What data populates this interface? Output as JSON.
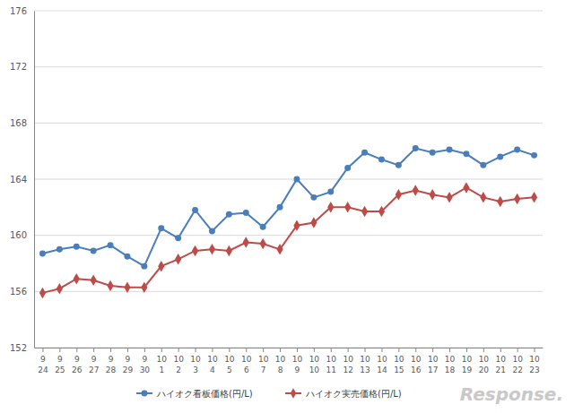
{
  "chart_data": {
    "type": "line",
    "categories": [
      "9\n24",
      "9\n25",
      "9\n26",
      "9\n27",
      "9\n28",
      "9\n29",
      "9\n30",
      "10\n1",
      "10\n2",
      "10\n3",
      "10\n4",
      "10\n5",
      "10\n6",
      "10\n7",
      "10\n8",
      "10\n9",
      "10\n10",
      "10\n11",
      "10\n12",
      "10\n13",
      "10\n14",
      "10\n15",
      "10\n16",
      "10\n17",
      "10\n18",
      "10\n19",
      "10\n20",
      "10\n21",
      "10\n22",
      "10\n23"
    ],
    "series": [
      {
        "name": "ハイオク看板価格(円/L)",
        "color": "#4a7ebb",
        "marker": "circle",
        "values": [
          158.7,
          159.0,
          159.2,
          158.9,
          159.3,
          158.5,
          157.8,
          160.5,
          159.8,
          161.8,
          160.3,
          161.5,
          161.6,
          160.6,
          162.0,
          164.0,
          162.7,
          163.1,
          164.8,
          165.9,
          165.4,
          165.0,
          166.2,
          165.9,
          166.1,
          165.8,
          165.0,
          165.6,
          166.1,
          165.7
        ]
      },
      {
        "name": "ハイオク実売価格(円/L)",
        "color": "#be4b48",
        "marker": "diamond",
        "values": [
          155.9,
          156.2,
          156.9,
          156.8,
          156.4,
          156.3,
          156.3,
          157.8,
          158.3,
          158.9,
          159.0,
          158.9,
          159.5,
          159.4,
          159.0,
          160.7,
          160.9,
          162.0,
          162.0,
          161.7,
          161.7,
          162.9,
          163.2,
          162.9,
          162.7,
          163.4,
          162.7,
          162.4,
          162.6,
          162.7
        ]
      }
    ],
    "ylim": [
      152,
      176
    ],
    "yticks": [
      152,
      156,
      160,
      164,
      168,
      172,
      176
    ],
    "grid": true,
    "legend": "bottom",
    "annotations": [
      "Response."
    ]
  }
}
